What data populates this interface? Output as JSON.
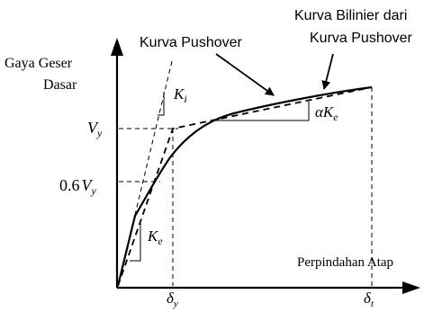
{
  "diagram": {
    "y_axis_label_line1": "Gaya Geser",
    "y_axis_label_line2": "Dasar",
    "x_axis_label": "Perpindahan Atap",
    "curve_label": "Kurva Pushover",
    "bilinear_label_line1": "Kurva Bilinier dari",
    "bilinear_label_line2": "Kurva Pushover",
    "ki_symbol": "K",
    "ki_subscript": "i",
    "ke_symbol": "K",
    "ke_subscript": "e",
    "alpha_ke_symbol": "αK",
    "alpha_ke_subscript": "e",
    "vy_symbol": "V",
    "vy_subscript": "y",
    "vy06_coef": "0.6",
    "vy06_symbol": "V",
    "vy06_subscript": "y",
    "delta_y_symbol": "δ",
    "delta_y_subscript": "y",
    "delta_t_symbol": "δ",
    "delta_t_subscript": "t"
  }
}
